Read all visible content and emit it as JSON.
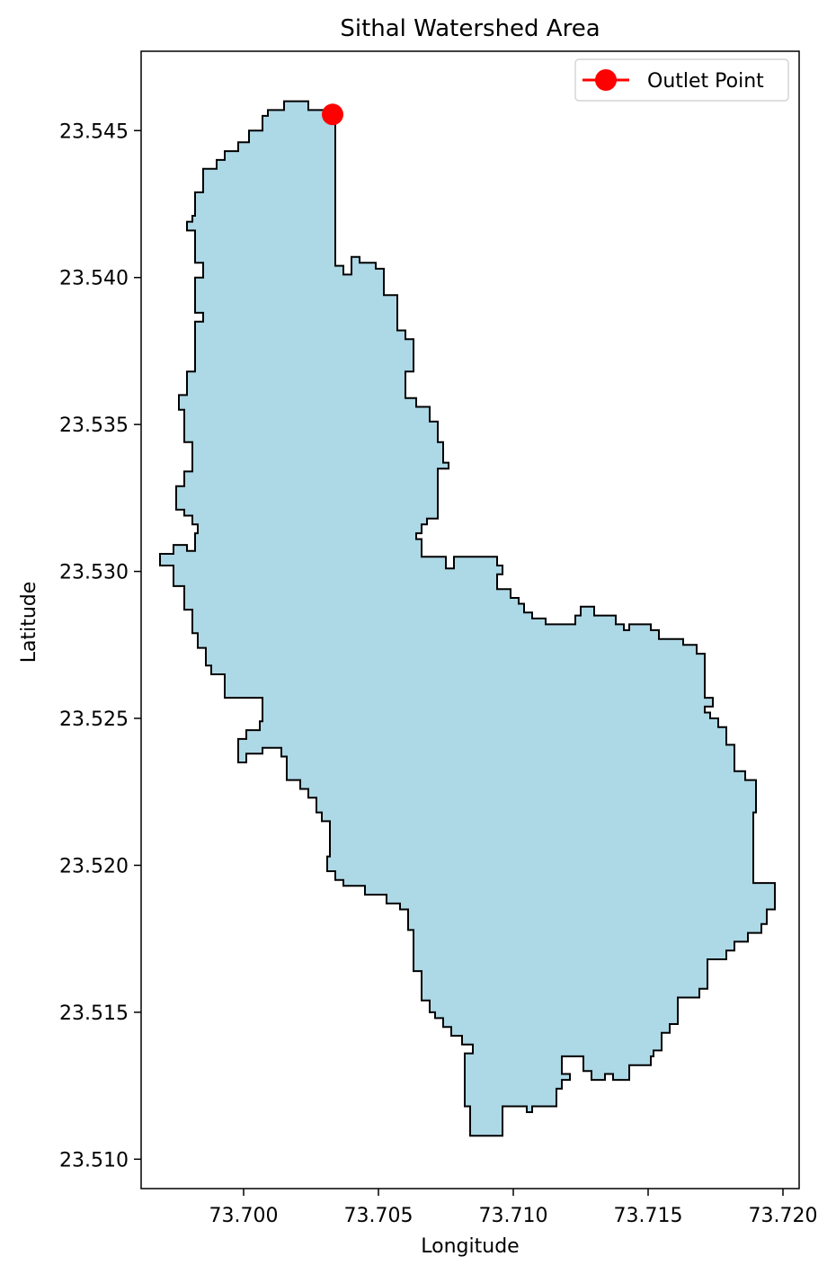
{
  "chart_data": {
    "type": "map",
    "title": "Sithal Watershed Area",
    "xlabel": "Longitude",
    "ylabel": "Latitude",
    "xlim": [
      73.6962,
      73.7206
    ],
    "ylim": [
      23.509,
      23.5477
    ],
    "xticks": [
      {
        "value": 73.7,
        "label": "73.700"
      },
      {
        "value": 73.705,
        "label": "73.705"
      },
      {
        "value": 73.71,
        "label": "73.710"
      },
      {
        "value": 73.715,
        "label": "73.715"
      },
      {
        "value": 73.72,
        "label": "73.720"
      }
    ],
    "yticks": [
      {
        "value": 23.51,
        "label": "23.510"
      },
      {
        "value": 23.515,
        "label": "23.515"
      },
      {
        "value": 23.52,
        "label": "23.520"
      },
      {
        "value": 23.525,
        "label": "23.525"
      },
      {
        "value": 23.53,
        "label": "23.530"
      },
      {
        "value": 23.535,
        "label": "23.535"
      },
      {
        "value": 23.54,
        "label": "23.540"
      },
      {
        "value": 23.545,
        "label": "23.545"
      }
    ],
    "legend_position": "top-right",
    "watershed": {
      "fill_color": "#add8e6",
      "edge_color": "#000000",
      "boundary": [
        [
          73.7015,
          23.546
        ],
        [
          73.7024,
          23.546
        ],
        [
          73.7024,
          23.5457
        ],
        [
          73.7034,
          23.5457
        ],
        [
          73.7034,
          23.5404
        ],
        [
          73.7037,
          23.5404
        ],
        [
          73.7037,
          23.5401
        ],
        [
          73.704,
          23.5401
        ],
        [
          73.704,
          23.5407
        ],
        [
          73.7043,
          23.5407
        ],
        [
          73.7043,
          23.5405
        ],
        [
          73.7049,
          23.5405
        ],
        [
          73.7049,
          23.5403
        ],
        [
          73.7052,
          23.5403
        ],
        [
          73.7052,
          23.5394
        ],
        [
          73.7057,
          23.5394
        ],
        [
          73.7057,
          23.5382
        ],
        [
          73.706,
          23.5382
        ],
        [
          73.706,
          23.5379
        ],
        [
          73.7063,
          23.5379
        ],
        [
          73.7063,
          23.5368
        ],
        [
          73.706,
          23.5368
        ],
        [
          73.706,
          23.5359
        ],
        [
          73.7064,
          23.5359
        ],
        [
          73.7064,
          23.5356
        ],
        [
          73.7069,
          23.5356
        ],
        [
          73.7069,
          23.5351
        ],
        [
          73.7072,
          23.5351
        ],
        [
          73.7072,
          23.5344
        ],
        [
          73.7074,
          23.5344
        ],
        [
          73.7074,
          23.5337
        ],
        [
          73.7076,
          23.5337
        ],
        [
          73.7076,
          23.5335
        ],
        [
          73.7072,
          23.5335
        ],
        [
          73.7072,
          23.5318
        ],
        [
          73.7068,
          23.5318
        ],
        [
          73.7068,
          23.5316
        ],
        [
          73.7066,
          23.5316
        ],
        [
          73.7066,
          23.5313
        ],
        [
          73.7064,
          23.5313
        ],
        [
          73.7064,
          23.5311
        ],
        [
          73.7066,
          23.5311
        ],
        [
          73.7066,
          23.5305
        ],
        [
          73.7075,
          23.5305
        ],
        [
          73.7075,
          23.5301
        ],
        [
          73.7078,
          23.5301
        ],
        [
          73.7078,
          23.5305
        ],
        [
          73.7094,
          23.5305
        ],
        [
          73.7094,
          23.5302
        ],
        [
          73.7096,
          23.5302
        ],
        [
          73.7096,
          23.5299
        ],
        [
          73.7094,
          23.5299
        ],
        [
          73.7094,
          23.5294
        ],
        [
          73.7099,
          23.5294
        ],
        [
          73.7099,
          23.5291
        ],
        [
          73.7102,
          23.5291
        ],
        [
          73.7102,
          23.5289
        ],
        [
          73.7104,
          23.5289
        ],
        [
          73.7104,
          23.5286
        ],
        [
          73.7107,
          23.5286
        ],
        [
          73.7107,
          23.5284
        ],
        [
          73.7112,
          23.5284
        ],
        [
          73.7112,
          23.5282
        ],
        [
          73.7123,
          23.5282
        ],
        [
          73.7123,
          23.5285
        ],
        [
          73.7125,
          23.5285
        ],
        [
          73.7125,
          23.5288
        ],
        [
          73.713,
          23.5288
        ],
        [
          73.713,
          23.5285
        ],
        [
          73.7138,
          23.5285
        ],
        [
          73.7138,
          23.5282
        ],
        [
          73.7141,
          23.5282
        ],
        [
          73.7141,
          23.528
        ],
        [
          73.7143,
          23.528
        ],
        [
          73.7143,
          23.5282
        ],
        [
          73.7151,
          23.5282
        ],
        [
          73.7151,
          23.528
        ],
        [
          73.7154,
          23.528
        ],
        [
          73.7154,
          23.5277
        ],
        [
          73.7163,
          23.5277
        ],
        [
          73.7163,
          23.5275
        ],
        [
          73.7168,
          23.5275
        ],
        [
          73.7168,
          23.5272
        ],
        [
          73.7171,
          23.5272
        ],
        [
          73.7171,
          23.5257
        ],
        [
          73.7174,
          23.5257
        ],
        [
          73.7174,
          23.5254
        ],
        [
          73.7171,
          23.5254
        ],
        [
          73.7171,
          23.5252
        ],
        [
          73.7173,
          23.5252
        ],
        [
          73.7173,
          23.525
        ],
        [
          73.7176,
          23.525
        ],
        [
          73.7176,
          23.5247
        ],
        [
          73.7179,
          23.5247
        ],
        [
          73.7179,
          23.5241
        ],
        [
          73.7182,
          23.5241
        ],
        [
          73.7182,
          23.5232
        ],
        [
          73.7186,
          23.5232
        ],
        [
          73.7186,
          23.5229
        ],
        [
          73.719,
          23.5229
        ],
        [
          73.719,
          23.5218
        ],
        [
          73.7189,
          23.5218
        ],
        [
          73.7189,
          23.5194
        ],
        [
          73.7197,
          23.5194
        ],
        [
          73.7197,
          23.5185
        ],
        [
          73.7194,
          23.5185
        ],
        [
          73.7194,
          23.518
        ],
        [
          73.7192,
          23.518
        ],
        [
          73.7192,
          23.5177
        ],
        [
          73.7187,
          23.5177
        ],
        [
          73.7187,
          23.5174
        ],
        [
          73.7182,
          23.5174
        ],
        [
          73.7182,
          23.5171
        ],
        [
          73.7179,
          23.5171
        ],
        [
          73.7179,
          23.5168
        ],
        [
          73.7172,
          23.5168
        ],
        [
          73.7172,
          23.5158
        ],
        [
          73.7169,
          23.5158
        ],
        [
          73.7169,
          23.5155
        ],
        [
          73.7161,
          23.5155
        ],
        [
          73.7161,
          23.5146
        ],
        [
          73.7158,
          23.5146
        ],
        [
          73.7158,
          23.5143
        ],
        [
          73.7155,
          23.5143
        ],
        [
          73.7155,
          23.5137
        ],
        [
          73.7152,
          23.5137
        ],
        [
          73.7152,
          23.5135
        ],
        [
          73.7151,
          23.5135
        ],
        [
          73.7151,
          23.5132
        ],
        [
          73.7143,
          23.5132
        ],
        [
          73.7143,
          23.5127
        ],
        [
          73.7137,
          23.5127
        ],
        [
          73.7137,
          23.5129
        ],
        [
          73.7134,
          23.5129
        ],
        [
          73.7134,
          23.5127
        ],
        [
          73.7129,
          23.5127
        ],
        [
          73.7129,
          23.513
        ],
        [
          73.7126,
          23.513
        ],
        [
          73.7126,
          23.5135
        ],
        [
          73.7118,
          23.5135
        ],
        [
          73.7118,
          23.5129
        ],
        [
          73.7121,
          23.5129
        ],
        [
          73.7121,
          23.5127
        ],
        [
          73.7118,
          23.5127
        ],
        [
          73.7118,
          23.5124
        ],
        [
          73.7116,
          23.5124
        ],
        [
          73.7116,
          23.5118
        ],
        [
          73.7107,
          23.5118
        ],
        [
          73.7107,
          23.5116
        ],
        [
          73.7105,
          23.5116
        ],
        [
          73.7105,
          23.5118
        ],
        [
          73.7096,
          23.5118
        ],
        [
          73.7096,
          23.5108
        ],
        [
          73.7084,
          23.5108
        ],
        [
          73.7084,
          23.5118
        ],
        [
          73.7082,
          23.5118
        ],
        [
          73.7082,
          23.5136
        ],
        [
          73.7085,
          23.5136
        ],
        [
          73.7085,
          23.5139
        ],
        [
          73.7081,
          23.5139
        ],
        [
          73.7081,
          23.5142
        ],
        [
          73.7077,
          23.5142
        ],
        [
          73.7077,
          23.5145
        ],
        [
          73.7074,
          23.5145
        ],
        [
          73.7074,
          23.5148
        ],
        [
          73.7071,
          23.5148
        ],
        [
          73.7071,
          23.515
        ],
        [
          73.7069,
          23.515
        ],
        [
          73.7069,
          23.5154
        ],
        [
          73.7066,
          23.5154
        ],
        [
          73.7066,
          23.5164
        ],
        [
          73.7063,
          23.5164
        ],
        [
          73.7063,
          23.5178
        ],
        [
          73.7061,
          23.5178
        ],
        [
          73.7061,
          23.5185
        ],
        [
          73.7058,
          23.5185
        ],
        [
          73.7058,
          23.5187
        ],
        [
          73.7053,
          23.5187
        ],
        [
          73.7053,
          23.519
        ],
        [
          73.7045,
          23.519
        ],
        [
          73.7045,
          23.5193
        ],
        [
          73.7037,
          23.5193
        ],
        [
          73.7037,
          23.5195
        ],
        [
          73.7034,
          23.5195
        ],
        [
          73.7034,
          23.5198
        ],
        [
          73.7031,
          23.5198
        ],
        [
          73.7031,
          23.5203
        ],
        [
          73.7032,
          23.5203
        ],
        [
          73.7032,
          23.5215
        ],
        [
          73.7029,
          23.5215
        ],
        [
          73.7029,
          23.5218
        ],
        [
          73.7027,
          23.5218
        ],
        [
          73.7027,
          23.5223
        ],
        [
          73.7024,
          23.5223
        ],
        [
          73.7024,
          23.5226
        ],
        [
          73.7021,
          23.5226
        ],
        [
          73.7021,
          23.5229
        ],
        [
          73.7016,
          23.5229
        ],
        [
          73.7016,
          23.5237
        ],
        [
          73.7014,
          23.5237
        ],
        [
          73.7014,
          23.524
        ],
        [
          73.7007,
          23.524
        ],
        [
          73.7007,
          23.5238
        ],
        [
          73.7001,
          23.5238
        ],
        [
          73.7001,
          23.5235
        ],
        [
          73.6998,
          23.5235
        ],
        [
          73.6998,
          23.5243
        ],
        [
          73.7001,
          23.5243
        ],
        [
          73.7001,
          23.5246
        ],
        [
          73.7006,
          23.5246
        ],
        [
          73.7006,
          23.5249
        ],
        [
          73.7007,
          23.5249
        ],
        [
          73.7007,
          23.5257
        ],
        [
          73.6993,
          23.5257
        ],
        [
          73.6993,
          23.5265
        ],
        [
          73.6988,
          23.5265
        ],
        [
          73.6988,
          23.5268
        ],
        [
          73.6986,
          23.5268
        ],
        [
          73.6986,
          23.5274
        ],
        [
          73.6983,
          23.5274
        ],
        [
          73.6983,
          23.5279
        ],
        [
          73.6981,
          23.5279
        ],
        [
          73.6981,
          23.5287
        ],
        [
          73.6978,
          23.5287
        ],
        [
          73.6978,
          23.5295
        ],
        [
          73.6974,
          23.5295
        ],
        [
          73.6974,
          23.5302
        ],
        [
          73.6969,
          23.5302
        ],
        [
          73.6969,
          23.5306
        ],
        [
          73.6974,
          23.5306
        ],
        [
          73.6974,
          23.5309
        ],
        [
          73.6979,
          23.5309
        ],
        [
          73.6979,
          23.5307
        ],
        [
          73.6982,
          23.5307
        ],
        [
          73.6982,
          23.5313
        ],
        [
          73.6983,
          23.5313
        ],
        [
          73.6983,
          23.5316
        ],
        [
          73.6981,
          23.5316
        ],
        [
          73.6981,
          23.5319
        ],
        [
          73.6978,
          23.5319
        ],
        [
          73.6978,
          23.5321
        ],
        [
          73.6975,
          23.5321
        ],
        [
          73.6975,
          23.5329
        ],
        [
          73.6978,
          23.5329
        ],
        [
          73.6978,
          23.5334
        ],
        [
          73.6981,
          23.5334
        ],
        [
          73.6981,
          23.5344
        ],
        [
          73.6978,
          23.5344
        ],
        [
          73.6978,
          23.5355
        ],
        [
          73.6976,
          23.5355
        ],
        [
          73.6976,
          23.536
        ],
        [
          73.6979,
          23.536
        ],
        [
          73.6979,
          23.5368
        ],
        [
          73.6982,
          23.5368
        ],
        [
          73.6982,
          23.5385
        ],
        [
          73.6985,
          23.5385
        ],
        [
          73.6985,
          23.5388
        ],
        [
          73.6982,
          23.5388
        ],
        [
          73.6982,
          23.54
        ],
        [
          73.6985,
          23.54
        ],
        [
          73.6985,
          23.5405
        ],
        [
          73.6982,
          23.5405
        ],
        [
          73.6982,
          23.5416
        ],
        [
          73.6979,
          23.5416
        ],
        [
          73.6979,
          23.5419
        ],
        [
          73.6981,
          23.5419
        ],
        [
          73.6981,
          23.5421
        ],
        [
          73.6982,
          23.5421
        ],
        [
          73.6982,
          23.5429
        ],
        [
          73.6985,
          23.5429
        ],
        [
          73.6985,
          23.5437
        ],
        [
          73.699,
          23.5437
        ],
        [
          73.699,
          23.544
        ],
        [
          73.6993,
          23.544
        ],
        [
          73.6993,
          23.5443
        ],
        [
          73.6998,
          23.5443
        ],
        [
          73.6998,
          23.5446
        ],
        [
          73.7002,
          23.5446
        ],
        [
          73.7002,
          23.545
        ],
        [
          73.7007,
          23.545
        ],
        [
          73.7007,
          23.5455
        ],
        [
          73.7009,
          23.5455
        ],
        [
          73.7009,
          23.5457
        ],
        [
          73.7015,
          23.5457
        ],
        [
          73.7015,
          23.546
        ]
      ]
    },
    "series": [
      {
        "name": "Outlet Point",
        "color": "#ff0000",
        "points": [
          {
            "x": 73.7033,
            "y": 23.54555
          }
        ]
      }
    ]
  }
}
